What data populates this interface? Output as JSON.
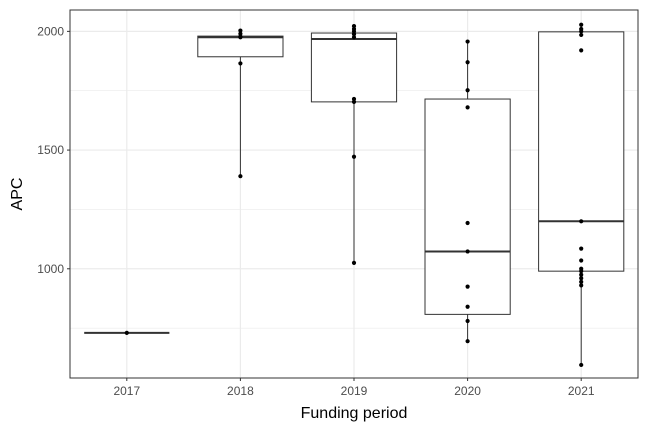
{
  "chart_data": {
    "type": "boxplot",
    "title": "",
    "xlabel": "Funding period",
    "ylabel": "APC",
    "categories": [
      "2017",
      "2018",
      "2019",
      "2020",
      "2021"
    ],
    "ylim": [
      540,
      2090
    ],
    "yticks": [
      1000,
      1500,
      2000
    ],
    "grid": true,
    "legend": "none",
    "boxes": [
      {
        "category": "2017",
        "min": 730,
        "q1": 730,
        "median": 730,
        "q3": 730,
        "max": 730
      },
      {
        "category": "2018",
        "min": 1390,
        "q1": 1893,
        "median": 1975,
        "q3": 1980,
        "max": 2003
      },
      {
        "category": "2019",
        "min": 1025,
        "q1": 1703,
        "median": 1968,
        "q3": 1993,
        "max": 2022
      },
      {
        "category": "2020",
        "min": 695,
        "q1": 808,
        "median": 1073,
        "q3": 1715,
        "max": 1957
      },
      {
        "category": "2021",
        "min": 595,
        "q1": 990,
        "median": 1200,
        "q3": 1998,
        "max": 2028
      }
    ],
    "points": [
      {
        "category": "2017",
        "values": [
          730
        ]
      },
      {
        "category": "2018",
        "values": [
          2003,
          1990,
          1978,
          1975,
          1865,
          1390
        ]
      },
      {
        "category": "2019",
        "values": [
          2022,
          2010,
          2000,
          1988,
          1975,
          1715,
          1703,
          1472,
          1025
        ]
      },
      {
        "category": "2020",
        "values": [
          1957,
          1870,
          1752,
          1680,
          1193,
          1073,
          925,
          840,
          780,
          695
        ]
      },
      {
        "category": "2021",
        "values": [
          2028,
          2010,
          2000,
          1985,
          1920,
          1200,
          1085,
          1035,
          1000,
          990,
          975,
          960,
          945,
          930,
          595
        ]
      }
    ],
    "colors": {
      "grid": "#ebebeb",
      "panel_border": "#333333",
      "box_line": "#333333",
      "point": "#000000"
    }
  }
}
